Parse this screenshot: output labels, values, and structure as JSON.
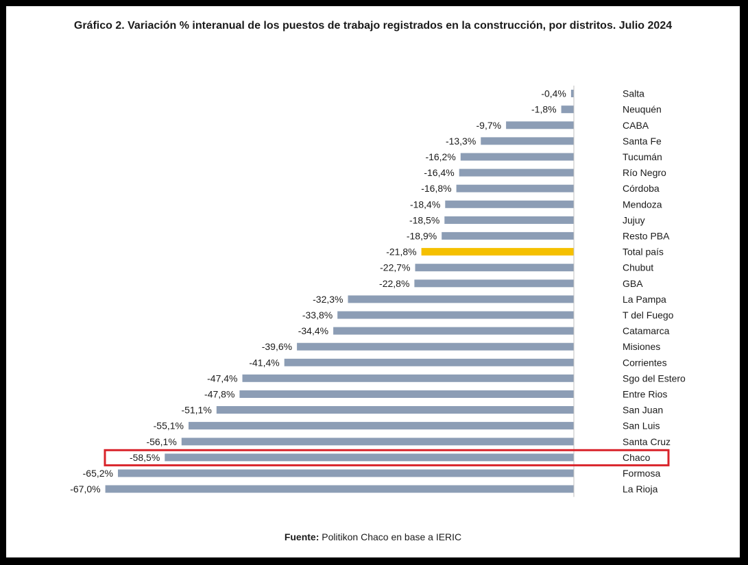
{
  "title": "Gráfico 2. Variación % interanual de los puestos de trabajo registrados en la construcción, por distritos. Julio 2024",
  "source": {
    "label": "Fuente:",
    "text": "Politikon Chaco en base a IERIC"
  },
  "colors": {
    "bar": "#8c9db5",
    "total_bar": "#f5c000",
    "highlight_box": "#d9232a",
    "axis": "#bfbfbf"
  },
  "chart_data": {
    "type": "bar",
    "orientation": "horizontal",
    "categories": [
      "Salta",
      "Neuquén",
      "CABA",
      "Santa Fe",
      "Tucumán",
      "Río Negro",
      "Córdoba",
      "Mendoza",
      "Jujuy",
      "Resto PBA",
      "Total país",
      "Chubut",
      "GBA",
      "La Pampa",
      "T del Fuego",
      "Catamarca",
      "Misiones",
      "Corrientes",
      "Sgo del Estero",
      "Entre Rios",
      "San Juan",
      "San Luis",
      "Santa Cruz",
      "Chaco",
      "Formosa",
      "La Rioja"
    ],
    "values": [
      -0.4,
      -1.8,
      -9.7,
      -13.3,
      -16.2,
      -16.4,
      -16.8,
      -18.4,
      -18.5,
      -18.9,
      -21.8,
      -22.7,
      -22.8,
      -32.3,
      -33.8,
      -34.4,
      -39.6,
      -41.4,
      -47.4,
      -47.8,
      -51.1,
      -55.1,
      -56.1,
      -58.5,
      -65.2,
      -67.0
    ],
    "value_labels": [
      "-0,4%",
      "-1,8%",
      "-9,7%",
      "-13,3%",
      "-16,2%",
      "-16,4%",
      "-16,8%",
      "-18,4%",
      "-18,5%",
      "-18,9%",
      "-21,8%",
      "-22,7%",
      "-22,8%",
      "-32,3%",
      "-33,8%",
      "-34,4%",
      "-39,6%",
      "-41,4%",
      "-47,4%",
      "-47,8%",
      "-51,1%",
      "-55,1%",
      "-56,1%",
      "-58,5%",
      "-65,2%",
      "-67,0%"
    ],
    "highlighted_category": "Total país",
    "boxed_category": "Chaco",
    "xlim": [
      -67.0,
      0
    ],
    "grid": false,
    "legend": "none"
  }
}
